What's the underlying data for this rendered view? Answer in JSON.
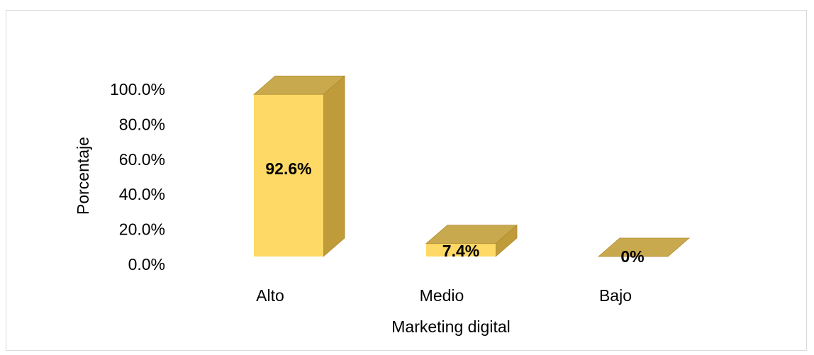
{
  "chart_data": {
    "type": "bar",
    "style": "3d-column",
    "categories": [
      "Alto",
      "Medio",
      "Bajo"
    ],
    "values": [
      92.6,
      7.4,
      0
    ],
    "data_labels": [
      "92.6%",
      "7.4%",
      "0%"
    ],
    "xlabel": "Marketing digital",
    "ylabel": "Porcentaje",
    "ylim": [
      0,
      100
    ],
    "yticks": [
      "0.0%",
      "20.0%",
      "40.0%",
      "60.0%",
      "80.0%",
      "100.0%"
    ],
    "grid": false,
    "legend": "none",
    "colors": {
      "front": "#ffd966",
      "top": "#c9a94e",
      "side": "#bf9b3a",
      "edge": "#b08b2e"
    }
  }
}
